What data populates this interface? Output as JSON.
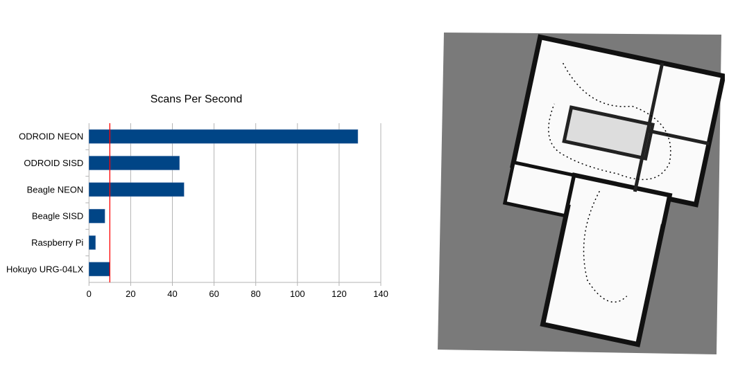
{
  "chart_data": {
    "type": "bar",
    "orientation": "horizontal",
    "title": "Scans Per Second",
    "categories": [
      "ODROID NEON",
      "ODROID SISD",
      "Beagle NEON",
      "Beagle SISD",
      "Raspberry Pi",
      "Hokuyo URG-04LX"
    ],
    "values": [
      129,
      43.4,
      45.6,
      7.6,
      3.1,
      10
    ],
    "xlim": [
      0,
      140
    ],
    "xticks": [
      0,
      20,
      40,
      60,
      80,
      100,
      120,
      140
    ],
    "xlabel": "",
    "ylabel": "",
    "grid": "vertical",
    "reference_line": {
      "value": 10,
      "color": "#ff0000"
    },
    "bar_color": "#004586"
  },
  "map_image": {
    "description_icon": "occupancy-grid-map"
  }
}
